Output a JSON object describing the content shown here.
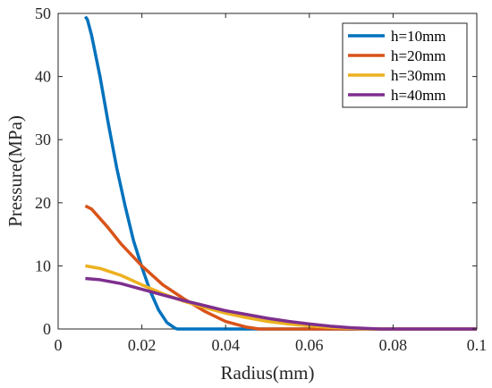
{
  "chart_data": {
    "type": "line",
    "xlabel": "Radius(mm)",
    "ylabel": "Pressure(MPa)",
    "xlim": [
      0,
      0.1
    ],
    "ylim": [
      0,
      50
    ],
    "x_ticks": [
      0,
      0.02,
      0.04,
      0.06,
      0.08,
      0.1
    ],
    "x_tick_labels": [
      "0",
      "0.02",
      "0.04",
      "0.06",
      "0.08",
      "0.1"
    ],
    "y_ticks": [
      0,
      10,
      20,
      30,
      40,
      50
    ],
    "y_tick_labels": [
      "0",
      "10",
      "20",
      "30",
      "40",
      "50"
    ],
    "grid": false,
    "legend_position": "top-right",
    "series": [
      {
        "name": "h=10mm",
        "color": "#0072BD",
        "points": [
          [
            0.0065,
            49.5
          ],
          [
            0.007,
            49.0
          ],
          [
            0.008,
            46.5
          ],
          [
            0.01,
            40.0
          ],
          [
            0.012,
            32.5
          ],
          [
            0.014,
            25.5
          ],
          [
            0.016,
            19.5
          ],
          [
            0.018,
            14.0
          ],
          [
            0.02,
            9.8
          ],
          [
            0.022,
            6.0
          ],
          [
            0.024,
            3.0
          ],
          [
            0.026,
            1.0
          ],
          [
            0.028,
            0.1
          ],
          [
            0.0285,
            0.0
          ],
          [
            0.1,
            0.0
          ]
        ]
      },
      {
        "name": "h=20mm",
        "color": "#D95319",
        "points": [
          [
            0.0065,
            19.5
          ],
          [
            0.008,
            19.0
          ],
          [
            0.01,
            17.5
          ],
          [
            0.012,
            16.0
          ],
          [
            0.015,
            13.5
          ],
          [
            0.02,
            10.0
          ],
          [
            0.025,
            7.0
          ],
          [
            0.03,
            4.8
          ],
          [
            0.035,
            2.8
          ],
          [
            0.04,
            1.2
          ],
          [
            0.045,
            0.3
          ],
          [
            0.048,
            0.0
          ],
          [
            0.1,
            0.0
          ]
        ]
      },
      {
        "name": "h=30mm",
        "color": "#EDB120",
        "points": [
          [
            0.0065,
            10.0
          ],
          [
            0.01,
            9.6
          ],
          [
            0.015,
            8.5
          ],
          [
            0.02,
            7.0
          ],
          [
            0.025,
            5.6
          ],
          [
            0.03,
            4.4
          ],
          [
            0.035,
            3.4
          ],
          [
            0.04,
            2.5
          ],
          [
            0.045,
            1.8
          ],
          [
            0.05,
            1.2
          ],
          [
            0.055,
            0.8
          ],
          [
            0.06,
            0.5
          ],
          [
            0.065,
            0.25
          ],
          [
            0.07,
            0.1
          ],
          [
            0.075,
            0.0
          ],
          [
            0.1,
            0.0
          ]
        ]
      },
      {
        "name": "h=40mm",
        "color": "#7E2F8E",
        "points": [
          [
            0.0065,
            8.0
          ],
          [
            0.01,
            7.8
          ],
          [
            0.015,
            7.2
          ],
          [
            0.02,
            6.3
          ],
          [
            0.025,
            5.4
          ],
          [
            0.03,
            4.5
          ],
          [
            0.035,
            3.7
          ],
          [
            0.04,
            2.9
          ],
          [
            0.045,
            2.3
          ],
          [
            0.05,
            1.7
          ],
          [
            0.055,
            1.2
          ],
          [
            0.06,
            0.8
          ],
          [
            0.065,
            0.45
          ],
          [
            0.07,
            0.2
          ],
          [
            0.075,
            0.05
          ],
          [
            0.077,
            0.0
          ],
          [
            0.1,
            0.0
          ]
        ]
      }
    ]
  }
}
